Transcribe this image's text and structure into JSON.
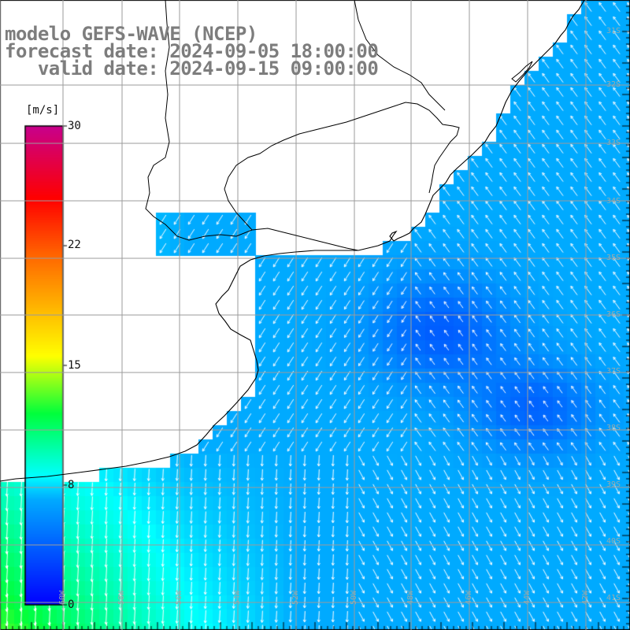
{
  "title": {
    "line1": "modelo GEFS-WAVE (NCEP)",
    "line2": "forecast date: 2024-09-05 18:00:00",
    "line3": "   valid date: 2024-09-15 09:00:00"
  },
  "colorbar": {
    "unit": "[m/s]",
    "min": 0,
    "max": 30,
    "ticks": [
      "0",
      "8",
      "15",
      "22",
      "30"
    ]
  },
  "map": {
    "variable": "wind speed and direction",
    "lon_labels": [
      "60W",
      "58W",
      "56W",
      "54W",
      "52W",
      "50W",
      "48W",
      "46W",
      "44W",
      "42W"
    ],
    "lat_labels": [
      "31S",
      "32S",
      "33S",
      "34S",
      "35S",
      "36S",
      "37S",
      "38S",
      "39S",
      "40S",
      "41S"
    ],
    "land_color": "#ffffff",
    "grid_color": "#9b9b9b",
    "coast_color": "#000000",
    "vector_color": "#ffffff"
  }
}
